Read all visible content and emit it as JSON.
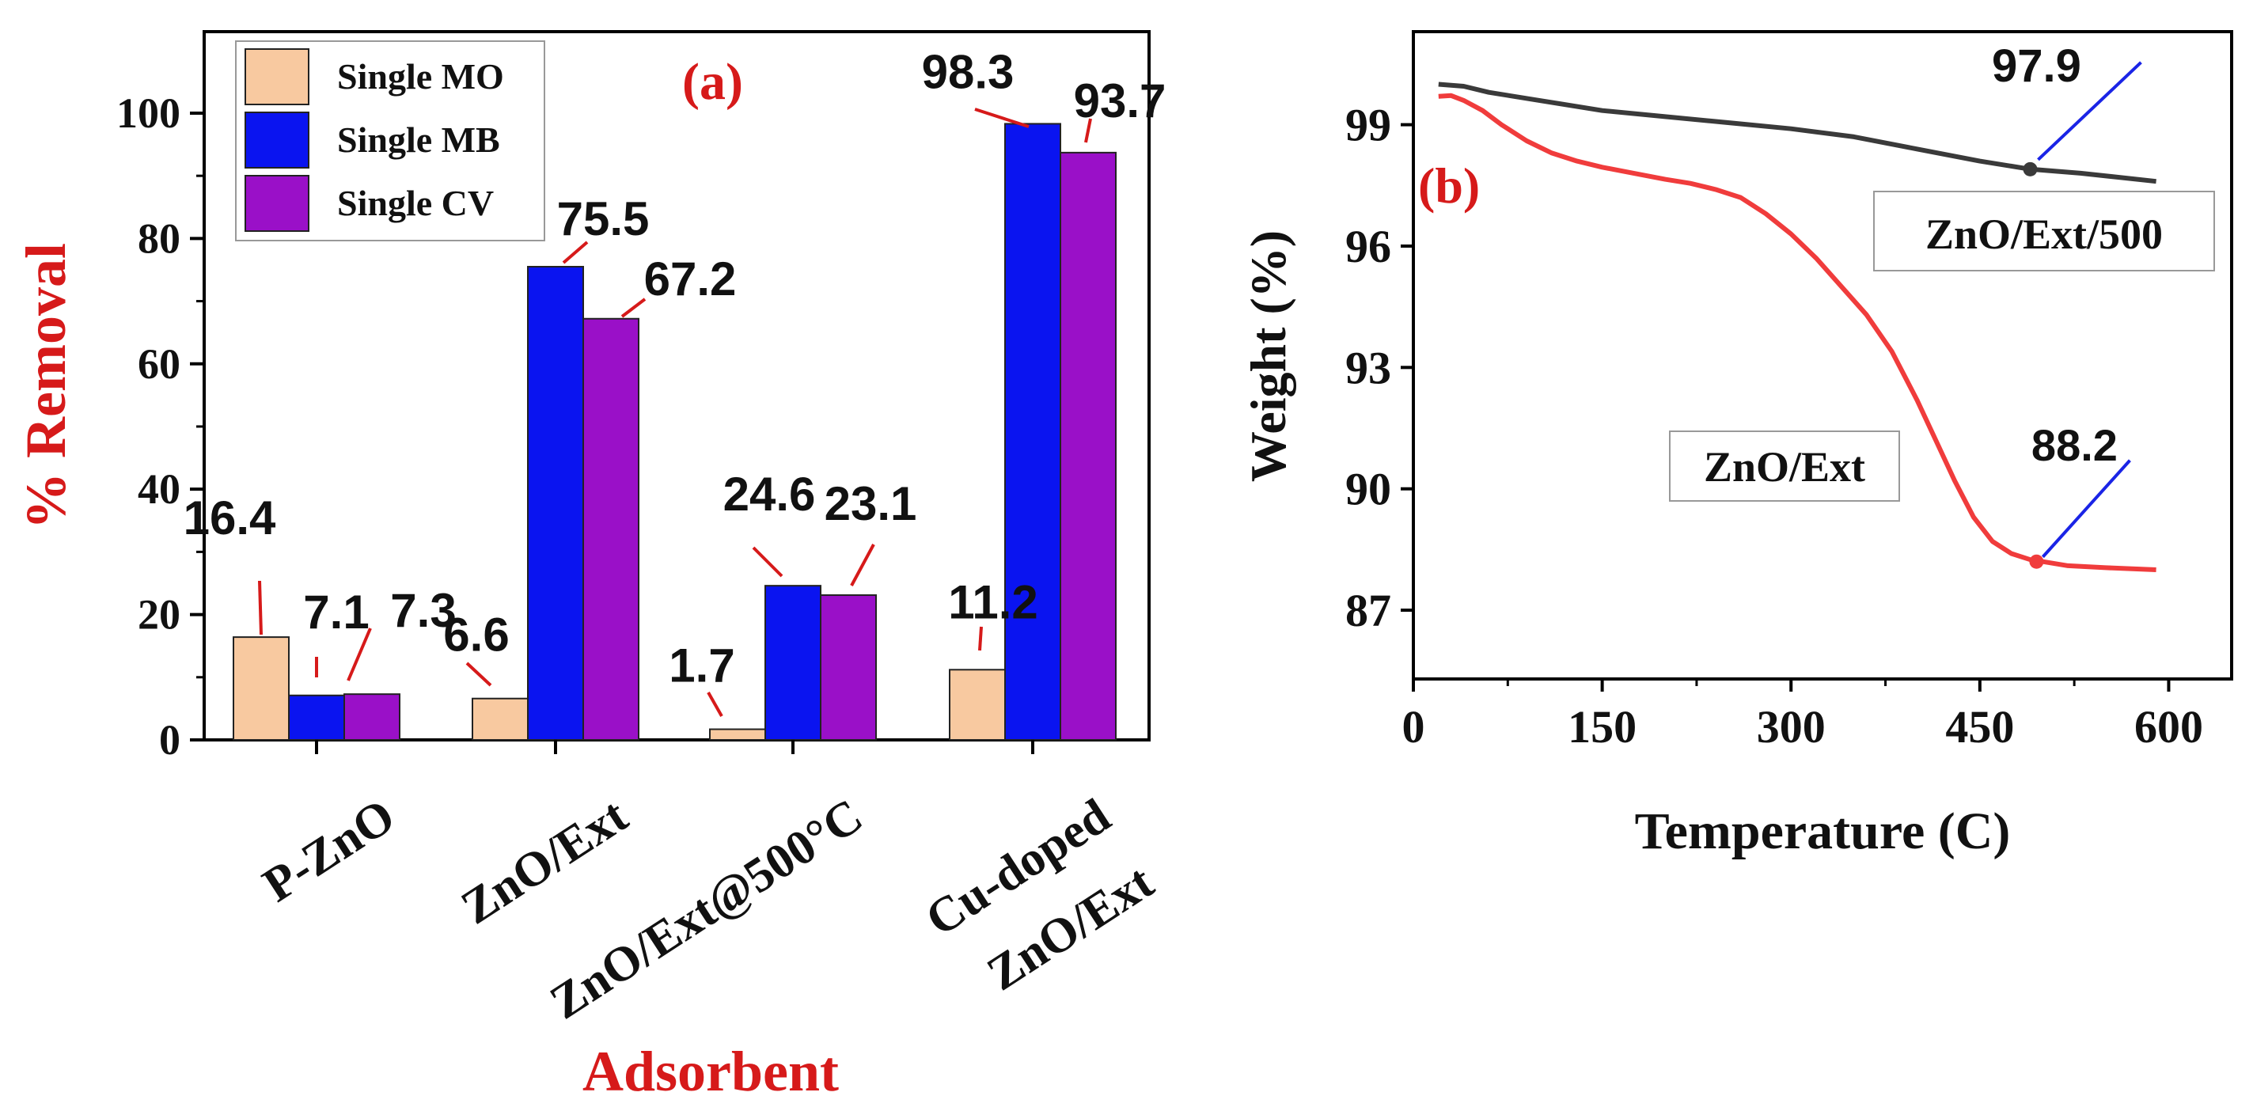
{
  "colors": {
    "mo": "#f8c9a0",
    "mb": "#0a14f0",
    "cv": "#9a10c8",
    "accent_red": "#d61a1a",
    "tga_ext": "#f03c3c",
    "tga_500": "#3a3a3a",
    "pointer_blue": "#1a24e6",
    "axis": "#000000"
  },
  "chart_data": [
    {
      "id": "a",
      "type": "bar",
      "panel_label": "(a)",
      "title": "",
      "xlabel": "Adsorbent",
      "ylabel": "% Removal",
      "ylim": [
        0,
        113
      ],
      "yticks": [
        "0",
        "20",
        "40",
        "60",
        "80",
        "100"
      ],
      "categories": [
        {
          "lines": [
            "P-ZnO"
          ]
        },
        {
          "lines": [
            "ZnO/Ext"
          ]
        },
        {
          "lines": [
            "ZnO/Ext@500°C"
          ]
        },
        {
          "lines": [
            "Cu-doped",
            "ZnO/Ext"
          ]
        }
      ],
      "series": [
        {
          "name": "Single MO",
          "values": [
            16.4,
            6.6,
            1.7,
            11.2
          ],
          "labels": [
            "16.4",
            "6.6",
            "1.7",
            "11.2"
          ]
        },
        {
          "name": "Single MB",
          "values": [
            7.1,
            75.5,
            24.6,
            98.3
          ],
          "labels": [
            "7.1",
            "75.5",
            "24.6",
            "98.3"
          ]
        },
        {
          "name": "Single CV",
          "values": [
            7.3,
            67.2,
            23.1,
            93.7
          ],
          "labels": [
            "7.3",
            "67.2",
            "23.1",
            "93.7"
          ]
        }
      ],
      "legend": [
        "Single MO",
        "Single MB",
        "Single CV"
      ],
      "legend_position": "top-left"
    },
    {
      "id": "b",
      "type": "line",
      "panel_label": "(b)",
      "title": "",
      "xlabel": "Temperature (C)",
      "ylabel": "Weight (%)",
      "xlim": [
        0,
        650
      ],
      "ylim": [
        85.3,
        101.3
      ],
      "xticks": [
        "0",
        "150",
        "300",
        "450",
        "600"
      ],
      "yticks": [
        "87",
        "90",
        "93",
        "96",
        "99"
      ],
      "series": [
        {
          "name": "ZnO/Ext/500",
          "x": [
            20,
            40,
            60,
            100,
            150,
            200,
            250,
            300,
            350,
            400,
            450,
            490,
            530,
            560,
            590
          ],
          "y": [
            100.0,
            99.95,
            99.8,
            99.6,
            99.35,
            99.2,
            99.05,
            98.9,
            98.7,
            98.4,
            98.1,
            97.9,
            97.8,
            97.7,
            97.6
          ],
          "marker_at": {
            "x": 490,
            "y": 97.9
          },
          "annotation": "97.9"
        },
        {
          "name": "ZnO/Ext",
          "x": [
            20,
            30,
            40,
            55,
            70,
            90,
            110,
            130,
            150,
            175,
            200,
            220,
            240,
            260,
            280,
            300,
            320,
            340,
            360,
            380,
            400,
            415,
            430,
            445,
            460,
            475,
            490,
            500,
            520,
            550,
            590
          ],
          "y": [
            99.7,
            99.72,
            99.6,
            99.35,
            99.0,
            98.6,
            98.3,
            98.1,
            97.95,
            97.8,
            97.65,
            97.55,
            97.4,
            97.2,
            96.8,
            96.3,
            95.7,
            95.0,
            94.3,
            93.4,
            92.2,
            91.2,
            90.2,
            89.3,
            88.7,
            88.4,
            88.25,
            88.2,
            88.1,
            88.05,
            88.0
          ],
          "marker_at": {
            "x": 495,
            "y": 88.2
          },
          "annotation": "88.2"
        }
      ],
      "curve_labels": [
        "ZnO/Ext/500",
        "ZnO/Ext"
      ]
    }
  ]
}
